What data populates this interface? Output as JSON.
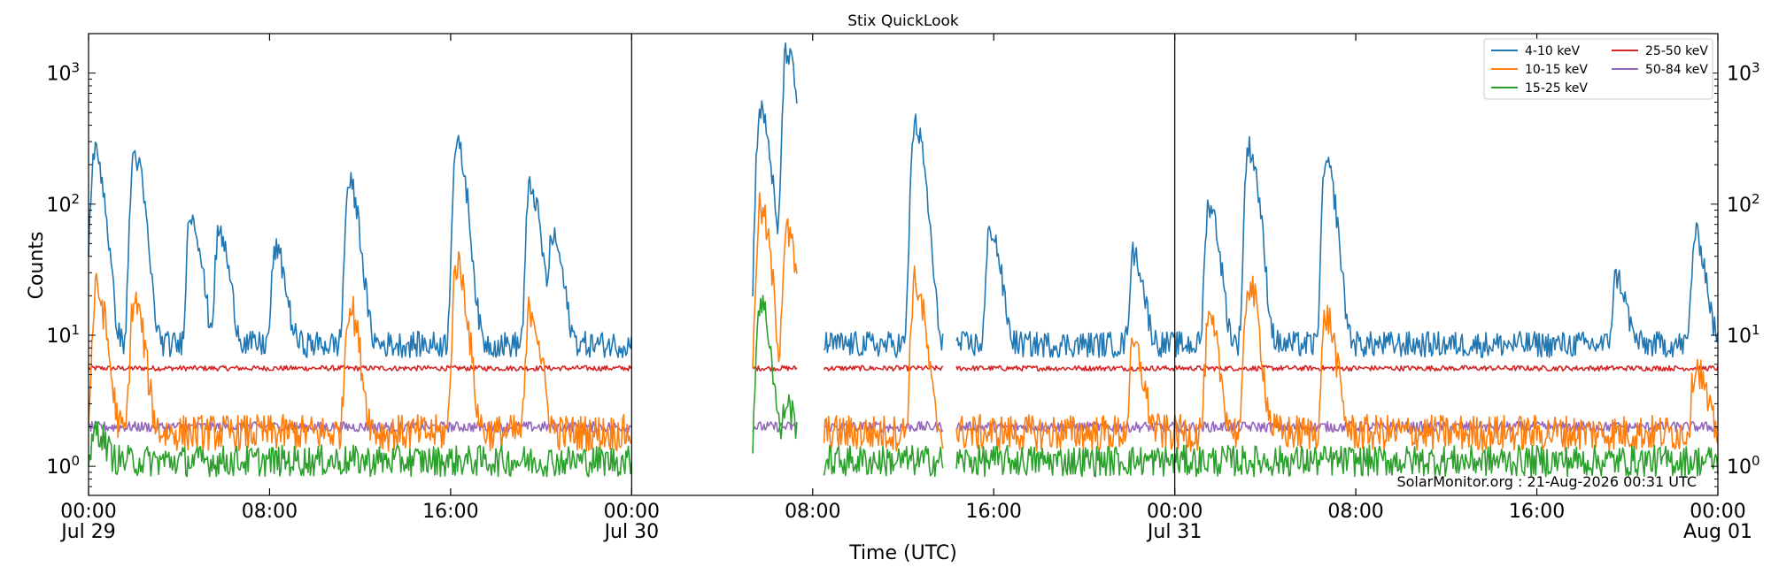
{
  "chart_data": {
    "type": "line",
    "title": "Stix QuickLook",
    "xlabel": "Time (UTC)",
    "ylabel": "Counts",
    "yscale": "log",
    "ylim": [
      0.6,
      2000
    ],
    "x_unit": "hours since Jul 29 00:00 UTC",
    "xlim": [
      0,
      72
    ],
    "x_tick_labels": [
      {
        "time": "00:00",
        "date": "Jul 29"
      },
      {
        "time": "08:00",
        "date": ""
      },
      {
        "time": "16:00",
        "date": ""
      },
      {
        "time": "00:00",
        "date": "Jul 30"
      },
      {
        "time": "08:00",
        "date": ""
      },
      {
        "time": "16:00",
        "date": ""
      },
      {
        "time": "00:00",
        "date": "Jul 31"
      },
      {
        "time": "08:00",
        "date": ""
      },
      {
        "time": "16:00",
        "date": ""
      },
      {
        "time": "00:00",
        "date": "Aug 01"
      }
    ],
    "y_tick_labels": [
      "10^0",
      "10^1",
      "10^2",
      "10^3"
    ],
    "day_boundaries": [
      "Jul 30 00:00",
      "Jul 31 00:00"
    ],
    "data_gaps": [
      {
        "from": "Jul 30 00:00",
        "to": "Jul 30 05:20"
      },
      {
        "from": "Jul 30 07:20",
        "to": "Jul 30 08:30"
      },
      {
        "from": "Jul 30 13:45",
        "to": "Jul 30 14:20"
      }
    ],
    "legend": {
      "placement": "top-right",
      "columns": 2
    },
    "series": [
      {
        "name": "4-10 keV",
        "color": "#1f77b4",
        "baseline": 8.5,
        "peaks": [
          {
            "time": "Jul 29 00:15",
            "value": 250
          },
          {
            "time": "Jul 29 02:00",
            "value": 240
          },
          {
            "time": "Jul 29 04:30",
            "value": 85
          },
          {
            "time": "Jul 29 05:45",
            "value": 60
          },
          {
            "time": "Jul 29 08:15",
            "value": 45
          },
          {
            "time": "Jul 29 11:30",
            "value": 145
          },
          {
            "time": "Jul 29 16:15",
            "value": 280
          },
          {
            "time": "Jul 29 19:30",
            "value": 135
          },
          {
            "time": "Jul 29 20:30",
            "value": 55
          },
          {
            "time": "Jul 30 05:40",
            "value": 520
          },
          {
            "time": "Jul 30 06:50",
            "value": 1450
          },
          {
            "time": "Jul 30 12:30",
            "value": 400
          },
          {
            "time": "Jul 30 15:50",
            "value": 65
          },
          {
            "time": "Jul 30 22:10",
            "value": 42
          },
          {
            "time": "Jul 31 01:30",
            "value": 100
          },
          {
            "time": "Jul 31 03:15",
            "value": 270
          },
          {
            "time": "Jul 31 06:40",
            "value": 200
          },
          {
            "time": "Jul 31 19:30",
            "value": 28
          },
          {
            "time": "Jul 31 23:00",
            "value": 58
          }
        ]
      },
      {
        "name": "10-15 keV",
        "color": "#ff7f0e",
        "baseline": 1.8,
        "peaks": [
          {
            "time": "Jul 29 00:20",
            "value": 22
          },
          {
            "time": "Jul 29 02:00",
            "value": 18
          },
          {
            "time": "Jul 29 11:30",
            "value": 17
          },
          {
            "time": "Jul 29 16:15",
            "value": 35
          },
          {
            "time": "Jul 29 19:30",
            "value": 16
          },
          {
            "time": "Jul 30 05:40",
            "value": 90
          },
          {
            "time": "Jul 30 06:50",
            "value": 60
          },
          {
            "time": "Jul 30 12:30",
            "value": 25
          },
          {
            "time": "Jul 30 22:10",
            "value": 8
          },
          {
            "time": "Jul 31 01:30",
            "value": 12
          },
          {
            "time": "Jul 31 03:15",
            "value": 25
          },
          {
            "time": "Jul 31 06:40",
            "value": 14
          },
          {
            "time": "Jul 31 23:00",
            "value": 6
          }
        ]
      },
      {
        "name": "15-25 keV",
        "color": "#2ca02c",
        "baseline": 1.1,
        "peaks": [
          {
            "time": "Jul 29 00:20",
            "value": 1.9
          },
          {
            "time": "Jul 30 05:40",
            "value": 18
          },
          {
            "time": "Jul 30 06:50",
            "value": 3
          }
        ]
      },
      {
        "name": "25-50 keV",
        "color": "#d62728",
        "baseline": 5.6,
        "peaks": []
      },
      {
        "name": "50-84 keV",
        "color": "#9467bd",
        "baseline": 2.0,
        "peaks": []
      }
    ],
    "grid": false
  },
  "footer_text": "SolarMonitor.org : 21-Aug-2026 00:31 UTC"
}
